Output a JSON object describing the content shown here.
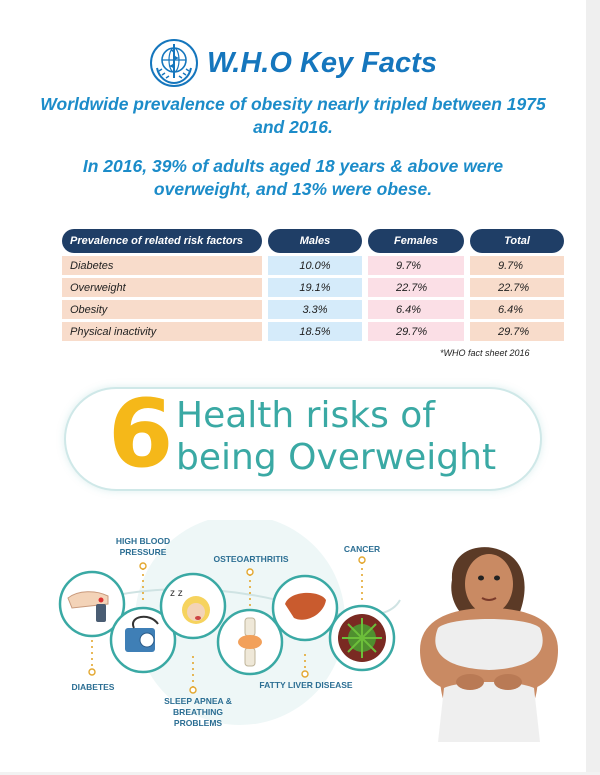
{
  "header": {
    "title": "W.H.O Key Facts",
    "headline1": "Worldwide prevalence of obesity nearly tripled between 1975 and 2016.",
    "headline2": "In 2016, 39% of adults aged 18 years & above were overweight, and 13% were obese."
  },
  "table": {
    "headers": [
      "Prevalence of related risk factors",
      "Males",
      "Females",
      "Total"
    ],
    "rows": [
      {
        "label": "Diabetes",
        "males": "10.0%",
        "females": "9.7%",
        "total": "9.7%"
      },
      {
        "label": "Overweight",
        "males": "19.1%",
        "females": "22.7%",
        "total": "22.7%"
      },
      {
        "label": "Obesity",
        "males": "3.3%",
        "females": "6.4%",
        "total": "6.4%"
      },
      {
        "label": "Physical inactivity",
        "males": "18.5%",
        "females": "29.7%",
        "total": "29.7%"
      }
    ],
    "footnote": "*WHO fact sheet 2016"
  },
  "banner": {
    "number": "6",
    "line1": "Health risks of",
    "line2": "being Overweight"
  },
  "risks": {
    "high_blood_pressure": "HIGH BLOOD PRESSURE",
    "osteoarthritis": "OSTEOARTHRITIS",
    "cancer": "CANCER",
    "diabetes": "DIABETES",
    "sleep_apnea": "SLEEP APNEA & BREATHING PROBLEMS",
    "fatty_liver": "FATTY LIVER DISEASE"
  },
  "colors": {
    "title_blue": "#1576bd",
    "headline_blue": "#1c8cc9",
    "table_header": "#1f3e66",
    "banner_teal": "#3aa9a4",
    "banner_yellow": "#f5b819",
    "label_blue": "#2b6e93"
  }
}
